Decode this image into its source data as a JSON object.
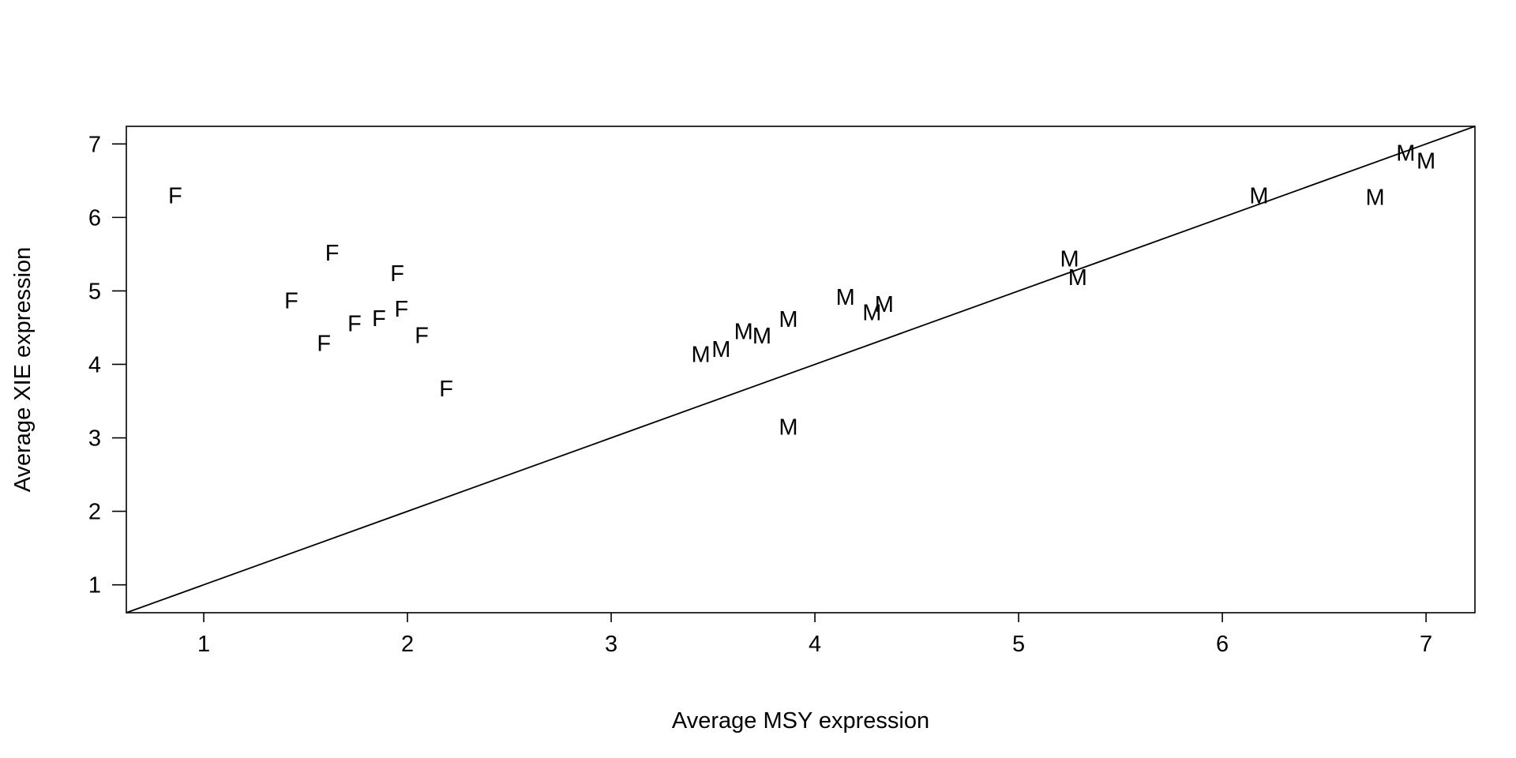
{
  "chart_data": {
    "type": "scatter",
    "title": "",
    "xlabel": "Average MSY expression",
    "ylabel": "Average XIE expression",
    "xlim": [
      0.62,
      7.24
    ],
    "ylim": [
      0.62,
      7.24
    ],
    "x_ticks": [
      1,
      2,
      3,
      4,
      5,
      6,
      7
    ],
    "y_ticks": [
      1,
      2,
      3,
      4,
      5,
      6,
      7
    ],
    "grid": false,
    "reference_line": {
      "type": "identity",
      "slope": 1,
      "intercept": 0
    },
    "series": [
      {
        "marker": "F",
        "points": [
          {
            "x": 0.86,
            "y": 6.3
          },
          {
            "x": 1.63,
            "y": 5.52
          },
          {
            "x": 1.95,
            "y": 5.24
          },
          {
            "x": 1.43,
            "y": 4.87
          },
          {
            "x": 1.97,
            "y": 4.76
          },
          {
            "x": 1.86,
            "y": 4.63
          },
          {
            "x": 1.74,
            "y": 4.56
          },
          {
            "x": 2.07,
            "y": 4.4
          },
          {
            "x": 1.59,
            "y": 4.29
          },
          {
            "x": 2.19,
            "y": 3.67
          }
        ]
      },
      {
        "marker": "M",
        "points": [
          {
            "x": 3.44,
            "y": 4.14
          },
          {
            "x": 3.54,
            "y": 4.21
          },
          {
            "x": 3.65,
            "y": 4.45
          },
          {
            "x": 3.74,
            "y": 4.39
          },
          {
            "x": 3.87,
            "y": 4.62
          },
          {
            "x": 3.87,
            "y": 3.15
          },
          {
            "x": 4.15,
            "y": 4.92
          },
          {
            "x": 4.28,
            "y": 4.71
          },
          {
            "x": 4.34,
            "y": 4.82
          },
          {
            "x": 5.25,
            "y": 5.44
          },
          {
            "x": 5.29,
            "y": 5.19
          },
          {
            "x": 6.18,
            "y": 6.3
          },
          {
            "x": 6.75,
            "y": 6.28
          },
          {
            "x": 6.9,
            "y": 6.88
          },
          {
            "x": 7.0,
            "y": 6.77
          }
        ]
      }
    ]
  }
}
